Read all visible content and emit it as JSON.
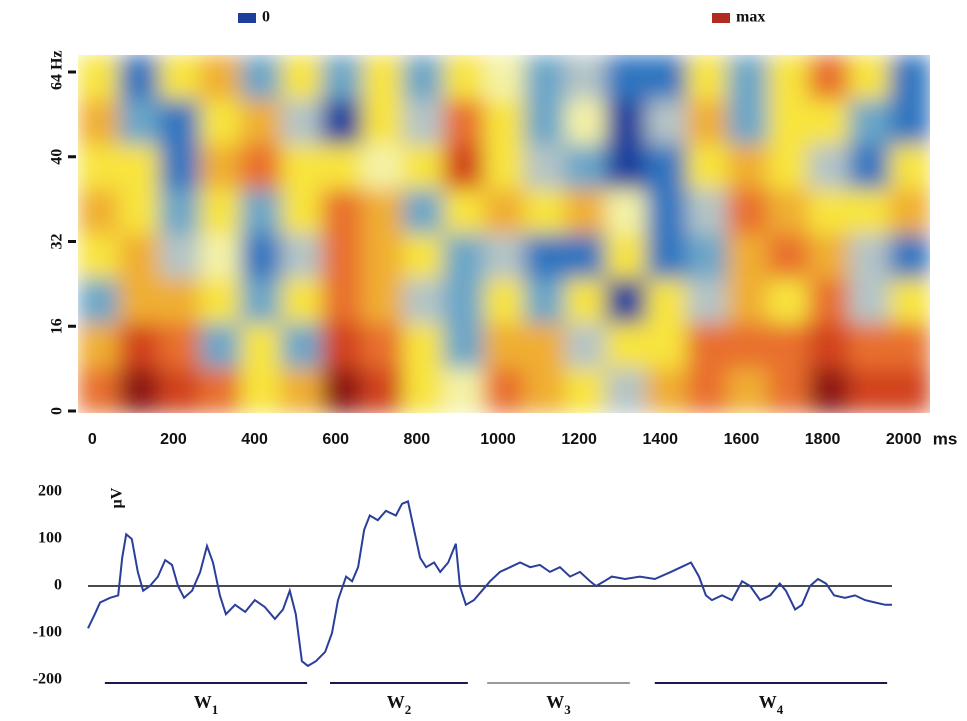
{
  "chart_data": [
    {
      "type": "heatmap",
      "legend": [
        {
          "label": "0",
          "color": "#1c3f9c"
        },
        {
          "label": "max",
          "color": "#b02a20"
        }
      ],
      "x": [
        0,
        100,
        200,
        300,
        400,
        500,
        600,
        700,
        800,
        900,
        1000,
        1100,
        1200,
        1300,
        1400,
        1500,
        1600,
        1700,
        1800,
        1900,
        2000
      ],
      "xlim": [
        -50,
        2050
      ],
      "xticks": [
        0,
        200,
        400,
        600,
        800,
        1000,
        1200,
        1400,
        1600,
        1800,
        2000
      ],
      "xlabel": "ms",
      "yticks": [
        0,
        16,
        32,
        40,
        {
          "value": 64,
          "label": "64 Hz"
        }
      ],
      "colorscale": [
        "#1c3f9c",
        "#2f74c0",
        "#6aa6c8",
        "#b4c4c6",
        "#f4f2a6",
        "#f8e43c",
        "#f0ae32",
        "#e8702e",
        "#d2421e",
        "#8c1212"
      ],
      "z": [
        [
          5,
          1,
          5,
          6,
          2,
          5,
          2,
          5,
          2,
          5,
          4,
          2,
          3,
          1,
          1,
          5,
          2,
          5,
          7,
          5,
          1
        ],
        [
          6,
          2,
          1,
          5,
          6,
          3,
          0,
          5,
          3,
          7,
          5,
          2,
          4,
          0,
          3,
          6,
          2,
          5,
          5,
          2,
          1
        ],
        [
          5,
          5,
          1,
          6,
          7,
          5,
          5,
          4,
          5,
          8,
          5,
          3,
          2,
          0,
          1,
          5,
          6,
          5,
          3,
          1,
          5
        ],
        [
          6,
          5,
          2,
          5,
          2,
          5,
          7,
          6,
          2,
          5,
          6,
          5,
          6,
          4,
          1,
          3,
          7,
          6,
          5,
          5,
          6
        ],
        [
          5,
          6,
          3,
          4,
          1,
          3,
          7,
          6,
          5,
          2,
          3,
          1,
          1,
          5,
          1,
          2,
          6,
          7,
          6,
          3,
          1
        ],
        [
          2,
          6,
          6,
          5,
          2,
          5,
          7,
          6,
          3,
          2,
          5,
          2,
          5,
          0,
          5,
          3,
          6,
          5,
          7,
          3,
          5
        ],
        [
          6,
          8,
          7,
          2,
          5,
          2,
          8,
          7,
          5,
          2,
          6,
          6,
          3,
          5,
          5,
          7,
          7,
          7,
          8,
          7,
          7
        ],
        [
          7,
          9,
          8,
          7,
          5,
          6,
          9,
          8,
          5,
          4,
          7,
          6,
          5,
          3,
          6,
          7,
          6,
          7,
          9,
          8,
          8
        ]
      ]
    },
    {
      "type": "line",
      "ylabel": "μV",
      "color": "#2a3f9a",
      "xlim": [
        0,
        2000
      ],
      "ylim": [
        -200,
        200
      ],
      "yticks": [
        -200,
        -100,
        0,
        100,
        200
      ],
      "x": [
        0,
        17,
        30,
        55,
        75,
        85,
        95,
        109,
        124,
        137,
        154,
        174,
        192,
        209,
        224,
        239,
        259,
        279,
        296,
        311,
        328,
        343,
        366,
        391,
        415,
        440,
        465,
        485,
        502,
        517,
        532,
        547,
        567,
        590,
        607,
        622,
        642,
        657,
        672,
        687,
        701,
        721,
        741,
        766,
        781,
        796,
        811,
        826,
        841,
        861,
        876,
        896,
        915,
        925,
        940,
        960,
        980,
        1000,
        1025,
        1050,
        1075,
        1100,
        1124,
        1149,
        1174,
        1199,
        1224,
        1249,
        1264,
        1284,
        1303,
        1336,
        1373,
        1410,
        1450,
        1475,
        1500,
        1520,
        1537,
        1552,
        1577,
        1602,
        1627,
        1647,
        1672,
        1697,
        1721,
        1736,
        1759,
        1776,
        1796,
        1816,
        1836,
        1856,
        1883,
        1908,
        1933,
        1958,
        1983,
        2000
      ],
      "values": [
        -90,
        -60,
        -35,
        -25,
        -20,
        60,
        110,
        100,
        30,
        -10,
        0,
        20,
        55,
        45,
        0,
        -25,
        -10,
        30,
        85,
        50,
        -20,
        -60,
        -40,
        -55,
        -30,
        -45,
        -70,
        -50,
        -10,
        -60,
        -160,
        -170,
        -160,
        -140,
        -100,
        -30,
        20,
        10,
        40,
        120,
        150,
        140,
        160,
        150,
        175,
        180,
        120,
        60,
        40,
        50,
        30,
        50,
        90,
        0,
        -40,
        -30,
        -10,
        10,
        30,
        40,
        50,
        40,
        45,
        30,
        40,
        20,
        30,
        10,
        0,
        10,
        20,
        15,
        20,
        15,
        30,
        40,
        50,
        20,
        -20,
        -30,
        -20,
        -30,
        10,
        0,
        -30,
        -20,
        5,
        -10,
        -50,
        -40,
        0,
        15,
        5,
        -20,
        -25,
        -20,
        -30,
        -35,
        -40,
        -40
      ],
      "windows": [
        {
          "label": "W1",
          "start": 42,
          "end": 545,
          "color": "#1a1a4e"
        },
        {
          "label": "W2",
          "start": 602,
          "end": 945,
          "color": "#1a1a4e"
        },
        {
          "label": "W3",
          "start": 993,
          "end": 1348,
          "color": "#9a9a9a"
        },
        {
          "label": "W4",
          "start": 1410,
          "end": 1988,
          "color": "#1a1a4e"
        }
      ]
    }
  ]
}
